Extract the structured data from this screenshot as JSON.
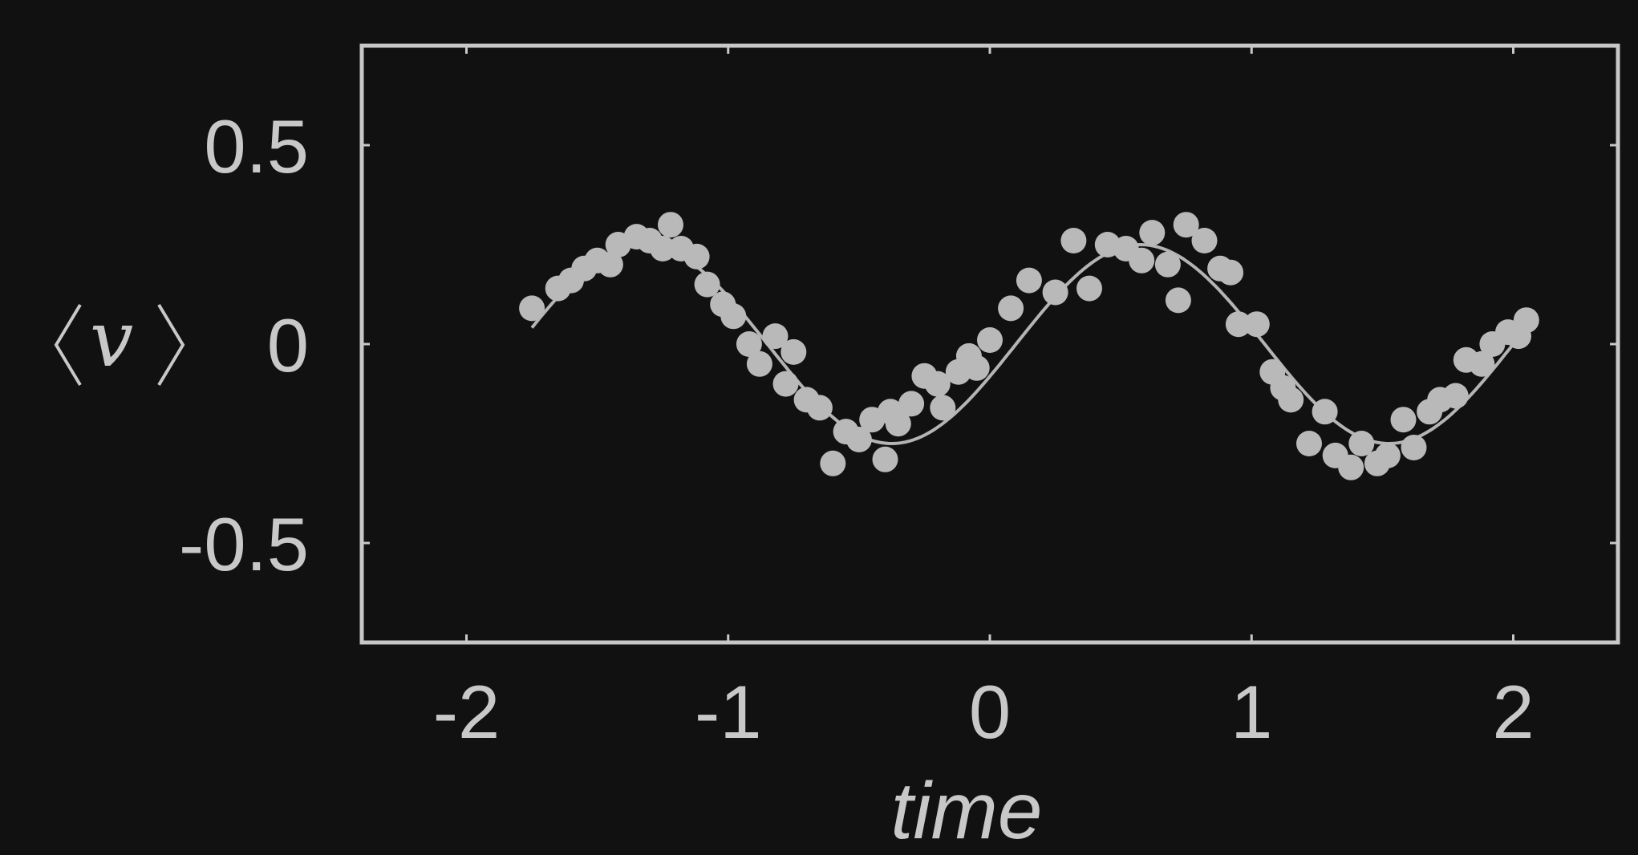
{
  "chart_data": {
    "type": "scatter",
    "xlabel": "time",
    "ylabel": "v",
    "xlim": [
      -2.4,
      2.4
    ],
    "ylim": [
      -0.75,
      0.75
    ],
    "xticks": [
      {
        "value": -2,
        "label": "-2"
      },
      {
        "value": -1,
        "label": "-1"
      },
      {
        "value": 0,
        "label": "0"
      },
      {
        "value": 1,
        "label": "1"
      },
      {
        "value": 2,
        "label": "2"
      }
    ],
    "yticks": [
      {
        "value": 0.5,
        "label": "0.5"
      },
      {
        "value": 0,
        "label": "0"
      },
      {
        "value": -0.5,
        "label": "-0.5"
      }
    ],
    "grid": false,
    "legend": "none",
    "series": [
      {
        "kind": "points",
        "x": [
          -1.75,
          -1.65,
          -1.6,
          -1.55,
          -1.5,
          -1.45,
          -1.42,
          -1.35,
          -1.3,
          -1.25,
          -1.22,
          -1.18,
          -1.12,
          -1.08,
          -1.02,
          -0.98,
          -0.92,
          -0.88,
          -0.82,
          -0.78,
          -0.75,
          -0.7,
          -0.65,
          -0.6,
          -0.55,
          -0.5,
          -0.45,
          -0.4,
          -0.38,
          -0.35,
          -0.3,
          -0.25,
          -0.2,
          -0.18,
          -0.12,
          -0.08,
          -0.05,
          0.0,
          0.08,
          0.15,
          0.25,
          0.32,
          0.38,
          0.45,
          0.52,
          0.58,
          0.62,
          0.68,
          0.72,
          0.75,
          0.82,
          0.88,
          0.92,
          0.95,
          1.02,
          1.08,
          1.12,
          1.15,
          1.22,
          1.28,
          1.32,
          1.38,
          1.42,
          1.48,
          1.52,
          1.58,
          1.62,
          1.68,
          1.72,
          1.78,
          1.82,
          1.88,
          1.92,
          1.98,
          2.02,
          2.05
        ],
        "y": [
          0.09,
          0.14,
          0.16,
          0.19,
          0.21,
          0.2,
          0.25,
          0.27,
          0.26,
          0.24,
          0.3,
          0.24,
          0.22,
          0.15,
          0.1,
          0.07,
          0.0,
          -0.05,
          0.02,
          -0.1,
          -0.02,
          -0.14,
          -0.16,
          -0.3,
          -0.22,
          -0.24,
          -0.19,
          -0.29,
          -0.17,
          -0.2,
          -0.15,
          -0.08,
          -0.1,
          -0.16,
          -0.07,
          -0.03,
          -0.06,
          0.01,
          0.09,
          0.16,
          0.13,
          0.26,
          0.14,
          0.25,
          0.24,
          0.21,
          0.28,
          0.2,
          0.11,
          0.3,
          0.26,
          0.19,
          0.18,
          0.05,
          0.05,
          -0.07,
          -0.11,
          -0.14,
          -0.25,
          -0.17,
          -0.28,
          -0.31,
          -0.25,
          -0.3,
          -0.28,
          -0.19,
          -0.26,
          -0.17,
          -0.14,
          -0.13,
          -0.04,
          -0.05,
          0.0,
          0.03,
          0.02,
          0.06
        ]
      },
      {
        "kind": "fit-line",
        "x_range": [
          -1.75,
          2.05
        ],
        "amplitude": 0.25,
        "period": 1.9,
        "phase_x": 0.1,
        "offset": 0.0
      }
    ]
  }
}
